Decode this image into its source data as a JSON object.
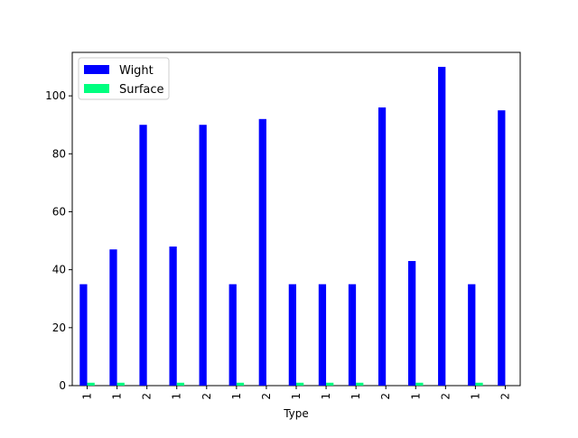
{
  "chart_data": {
    "type": "bar",
    "xlabel": "Type",
    "ylabel": "",
    "categories": [
      "1",
      "1",
      "2",
      "1",
      "2",
      "1",
      "2",
      "1",
      "1",
      "1",
      "2",
      "1",
      "2",
      "1",
      "2"
    ],
    "series": [
      {
        "name": "Wight",
        "color": "#0000ff",
        "values": [
          35,
          47,
          90,
          48,
          90,
          35,
          92,
          35,
          35,
          35,
          96,
          43,
          110,
          35,
          95
        ]
      },
      {
        "name": "Surface",
        "color": "#00ff7f",
        "values": [
          1,
          1,
          0,
          1,
          0,
          1,
          0,
          1,
          1,
          1,
          0,
          1,
          0,
          1,
          0
        ]
      }
    ],
    "ylim": [
      0,
      115
    ],
    "yticks": [
      0,
      20,
      40,
      60,
      80,
      100
    ],
    "legend": "top-left",
    "grid": false
  }
}
